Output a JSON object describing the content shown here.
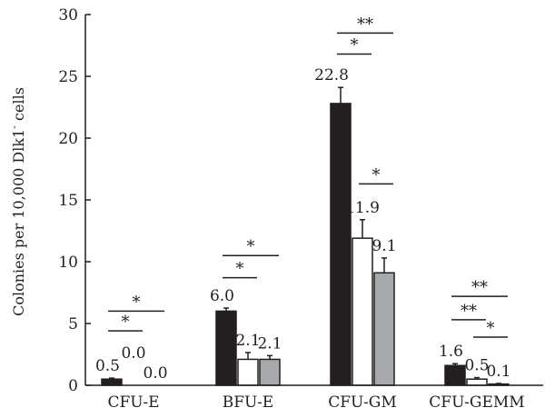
{
  "chart_data": {
    "type": "bar",
    "ylabel_main": "Colonies per 10,000 Dlk1",
    "ylabel_sup": "-",
    "ylabel_tail": " cells",
    "ylim": [
      0,
      30
    ],
    "yticks": [
      0,
      5,
      10,
      15,
      20,
      25,
      30
    ],
    "categories": [
      "CFU-E",
      "BFU-E",
      "CFU-GM",
      "CFU-GEMM"
    ],
    "series": [
      {
        "values": [
          0.5,
          6.0,
          22.8,
          1.6
        ],
        "errors": [
          0.08,
          0.25,
          1.3,
          0.15
        ],
        "color": "#231f20"
      },
      {
        "values": [
          0.0,
          2.1,
          11.9,
          0.5
        ],
        "errors": [
          0.0,
          0.55,
          1.5,
          0.12
        ],
        "color": "#ffffff"
      },
      {
        "values": [
          0.0,
          2.1,
          9.1,
          0.1
        ],
        "errors": [
          0.0,
          0.3,
          1.2,
          0.05
        ],
        "color": "#a7a9ac"
      }
    ],
    "value_labels": [
      [
        "0.5",
        "0.0",
        "0.0"
      ],
      [
        "6.0",
        "2.1",
        "2.1"
      ],
      [
        "22.8",
        "11.9",
        "9.1"
      ],
      [
        "1.6",
        "0.5",
        "0.1"
      ]
    ],
    "significance": [
      {
        "group": 0,
        "from": 0,
        "to": 1,
        "label": "*",
        "y": 4.4
      },
      {
        "group": 0,
        "from": 0,
        "to": 2,
        "label": "*",
        "y": 6.0
      },
      {
        "group": 1,
        "from": 0,
        "to": 1,
        "label": "*",
        "y": 8.7
      },
      {
        "group": 1,
        "from": 0,
        "to": 2,
        "label": "*",
        "y": 10.5
      },
      {
        "group": 2,
        "from": 0,
        "to": 1,
        "label": "*",
        "y": 26.8
      },
      {
        "group": 2,
        "from": 0,
        "to": 2,
        "label": "**",
        "y": 28.5
      },
      {
        "group": 2,
        "from": 1,
        "to": 2,
        "label": "*",
        "y": 16.3
      },
      {
        "group": 3,
        "from": 0,
        "to": 1,
        "label": "**",
        "y": 5.3
      },
      {
        "group": 3,
        "from": 0,
        "to": 2,
        "label": "**",
        "y": 7.2
      },
      {
        "group": 3,
        "from": 1,
        "to": 2,
        "label": "*",
        "y": 3.9
      }
    ]
  }
}
